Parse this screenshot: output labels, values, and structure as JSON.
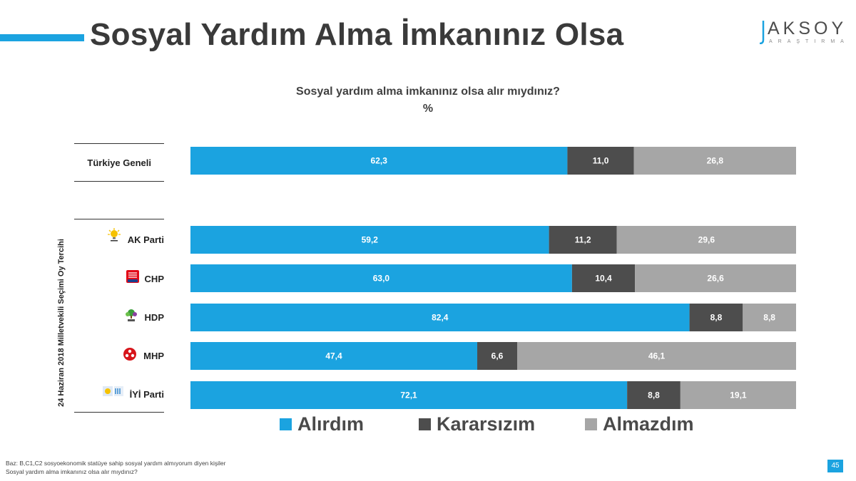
{
  "header": {
    "title": "Sosyal Yardım Alma İmkanınız Olsa",
    "logo_text": "AKSOY",
    "logo_subtext": "ARAŞTIRMA"
  },
  "chart_data": {
    "type": "bar",
    "orientation": "horizontal",
    "stacked": "100%",
    "title": "Sosyal yardım alma imkanınız olsa alır mıydınız?",
    "unit": "%",
    "group_label": "24 Haziran 2018 Milletvekili Seçimi Oy Tercihi",
    "categories": [
      "Türkiye Geneli",
      "AK Parti",
      "CHP",
      "HDP",
      "MHP",
      "İYİ Parti"
    ],
    "series": [
      {
        "name": "Alırdım",
        "color": "#1BA3E0",
        "values": [
          62.3,
          59.2,
          63.0,
          82.4,
          47.4,
          72.1
        ]
      },
      {
        "name": "Kararsızım",
        "color": "#4D4D4D",
        "values": [
          11.0,
          11.2,
          10.4,
          8.8,
          6.6,
          8.8
        ]
      },
      {
        "name": "Almazdım",
        "color": "#A6A6A6",
        "values": [
          26.8,
          29.6,
          26.6,
          8.8,
          46.1,
          19.1
        ]
      }
    ],
    "value_labels": [
      [
        "62,3",
        "11,0",
        "26,8"
      ],
      [
        "59,2",
        "11,2",
        "29,6"
      ],
      [
        "63,0",
        "10,4",
        "26,6"
      ],
      [
        "82,4",
        "8,8",
        "8,8"
      ],
      [
        "47,4",
        "6,6",
        "46,1"
      ],
      [
        "72,1",
        "8,8",
        "19,1"
      ]
    ],
    "xlim": [
      0,
      100
    ],
    "legend_position": "bottom",
    "grid": false
  },
  "footnote": {
    "line1": "Baz: B,C1,C2 sosyoekonomik statüye sahip sosyal yardım almıyorum diyen kişiler",
    "line2": "Sosyal yardım alma imkanınız olsa alır mıydınız?"
  },
  "page_number": "45",
  "icons": {
    "ak_parti": "ak-parti-lightbulb-logo",
    "chp": "chp-six-arrows-logo",
    "hdp": "hdp-tree-logo",
    "mhp": "mhp-three-crescents-logo",
    "iyi_parti": "iyi-parti-sun-logo"
  }
}
